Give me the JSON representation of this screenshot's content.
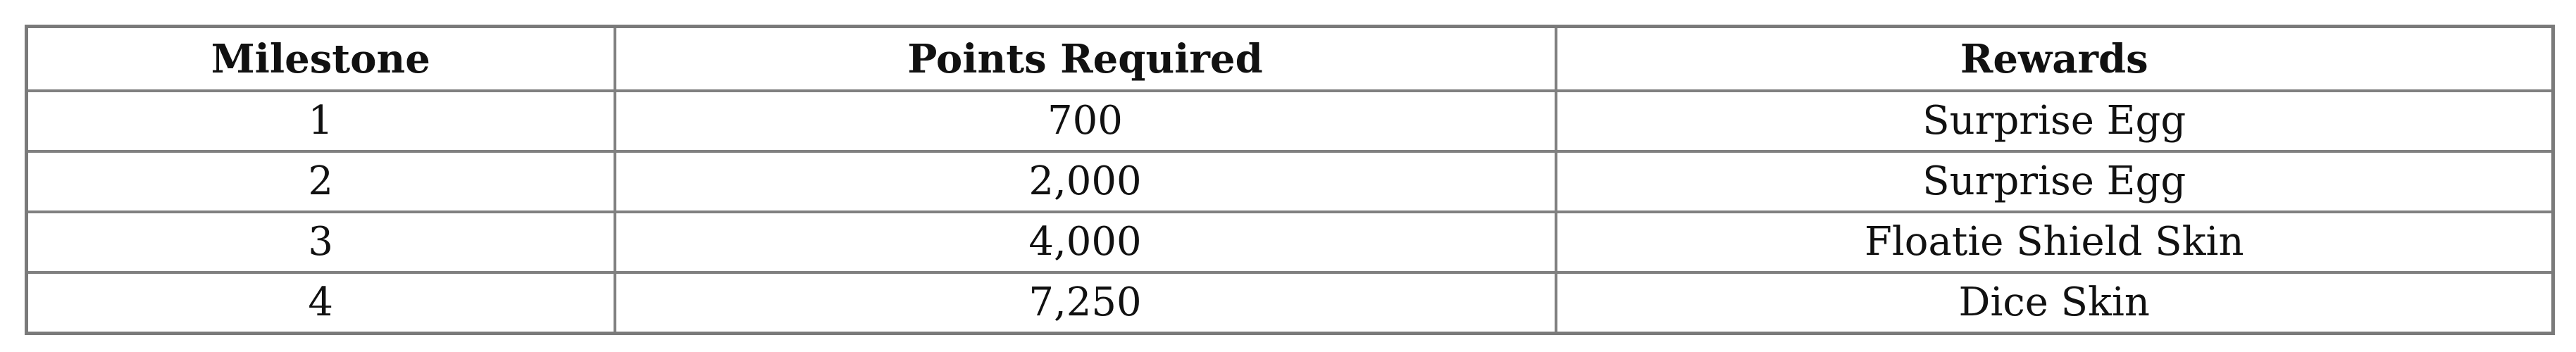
{
  "table": {
    "headers": [
      "Milestone",
      "Points Required",
      "Rewards"
    ],
    "rows": [
      [
        "1",
        "700",
        "Surprise Egg"
      ],
      [
        "2",
        "2,000",
        "Surprise Egg"
      ],
      [
        "3",
        "4,000",
        "Floatie Shield Skin"
      ],
      [
        "4",
        "7,250",
        "Dice Skin"
      ]
    ]
  }
}
